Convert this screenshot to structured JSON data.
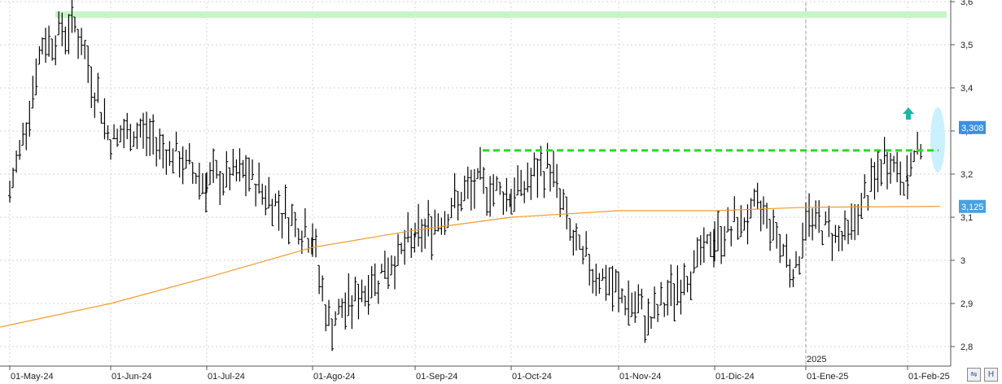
{
  "chart_data": {
    "type": "ohlc",
    "ylim": [
      2.78,
      3.6
    ],
    "grid": true,
    "x_tick_labels": [
      "01-May-24",
      "01-Jun-24",
      "01-Jul-24",
      "01-Ago-24",
      "01-Sep-24",
      "01-Oct-24",
      "01-Nov-24",
      "01-Dic-24",
      "01-Ene-25",
      "01-Feb-25"
    ],
    "y_tick_labels": [
      "2,8",
      "2,9",
      "3",
      "3,1",
      "3,2",
      "3,3",
      "3,4",
      "3,5",
      "3,6"
    ],
    "y_ticks": [
      2.8,
      2.9,
      3.0,
      3.1,
      3.2,
      3.3,
      3.4,
      3.5,
      3.6
    ],
    "year_marker": "2025",
    "last_price_label": "3,308",
    "last_price": 3.308,
    "moving_average_label": "3,125",
    "moving_average_last": 3.125,
    "resistance_level": 3.255,
    "resistance_start_label": "01-Sep-24",
    "top_band_level": 3.57,
    "moving_average_points": [
      [
        "01-May-24",
        2.85
      ],
      [
        "01-Jun-24",
        2.9
      ],
      [
        "01-Jul-24",
        2.96
      ],
      [
        "01-Ago-24",
        3.03
      ],
      [
        "01-Sep-24",
        3.07
      ],
      [
        "01-Oct-24",
        3.1
      ],
      [
        "01-Nov-24",
        3.115
      ],
      [
        "01-Dic-24",
        3.115
      ],
      [
        "01-Ene-25",
        3.123
      ],
      [
        "01-Feb-25",
        3.125
      ]
    ],
    "price_path": [
      [
        "01-May-24",
        3.15
      ],
      [
        "01-May-24+10",
        3.5
      ],
      [
        "01-May-24+20",
        3.55
      ],
      [
        "01-Jun-24",
        3.28
      ],
      [
        "01-Jun-24+10",
        3.3
      ],
      [
        "01-Jul-24",
        3.18
      ],
      [
        "01-Jul-24+12",
        3.2
      ],
      [
        "01-Ago-24",
        3.05
      ],
      [
        "01-Ago-24+5",
        2.85
      ],
      [
        "01-Sep-24",
        3.05
      ],
      [
        "01-Sep-24+20",
        3.18
      ],
      [
        "01-Oct-24",
        3.15
      ],
      [
        "01-Oct-24+12",
        3.22
      ],
      [
        "01-Oct-24+20",
        3.02
      ],
      [
        "01-Nov-24",
        2.92
      ],
      [
        "01-Nov-24+10",
        2.86
      ],
      [
        "01-Dic-24",
        3.05
      ],
      [
        "01-Dic-24+15",
        3.12
      ],
      [
        "01-Dic-24+25",
        2.97
      ],
      [
        "01-Ene-25",
        3.1
      ],
      [
        "01-Ene-25+12",
        3.05
      ],
      [
        "01-Ene-25+25",
        3.24
      ],
      [
        "01-Feb-25",
        3.18
      ],
      [
        "01-Feb-25+5",
        3.3
      ]
    ]
  },
  "colors": {
    "bars": "#000000",
    "moving_average": "#f39a2b",
    "resistance": "#22dd22",
    "top_band": "#c8f5c8",
    "last_price_box": "#3b8fe0",
    "ma_box": "#4aa0e0",
    "highlight_ellipse": "#bfefff",
    "arrow": "#1fb5a5",
    "grid": "#d6d6d6"
  },
  "icons": {
    "scroll_left": "scroll-arrows-icon",
    "scroll_right": "h-box-icon"
  }
}
